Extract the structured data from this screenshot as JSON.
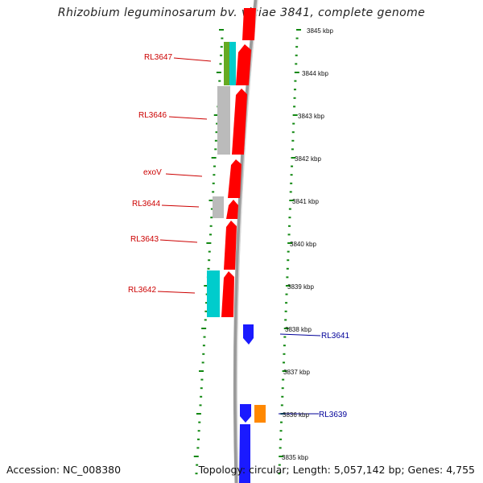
{
  "title": "Rhizobium leguminosarum bv. viciae 3841, complete genome",
  "footer": {
    "accession": "Accession: NC_008380",
    "summary": "Topology: circular; Length: 5,057,142 bp; Genes: 4,755"
  },
  "colors": {
    "forward_gene": "#ff0000",
    "reverse_gene": "#0000ff",
    "gray_feature": "#bbbbbb",
    "cyan_feature": "#00cccc",
    "olive_feature": "#66aa22",
    "orange_feature": "#ff8800",
    "left_label": "#cc0000",
    "right_label": "#000099",
    "tick_dots": "#118811",
    "backbone": "#888888"
  },
  "ticks": [
    {
      "label": "3845 kbp"
    },
    {
      "label": "3844 kbp"
    },
    {
      "label": "3843 kbp"
    },
    {
      "label": "3842 kbp"
    },
    {
      "label": "3841 kbp"
    },
    {
      "label": "3840 kbp"
    },
    {
      "label": "3839 kbp"
    },
    {
      "label": "3838 kbp"
    },
    {
      "label": "3837 kbp"
    },
    {
      "label": "3836 kbp"
    },
    {
      "label": "3835 kbp"
    }
  ],
  "gene_labels": {
    "left": [
      "RL3647",
      "RL3646",
      "exoV",
      "RL3644",
      "RL3643",
      "RL3642"
    ],
    "right": [
      "RL3641",
      "RL3639"
    ]
  }
}
